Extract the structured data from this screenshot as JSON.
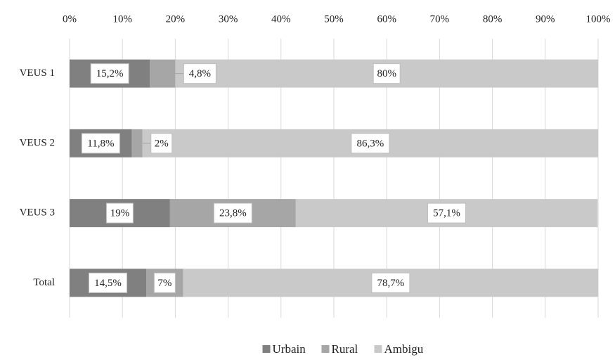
{
  "chart_data": {
    "type": "stacked_barh",
    "categories": [
      "VEUS 1",
      "VEUS 2",
      "VEUS 3",
      "Total"
    ],
    "series": [
      {
        "name": "Urbain",
        "color": "#808080",
        "values": [
          15.2,
          11.8,
          19,
          14.5
        ],
        "value_labels": [
          "15,2%",
          "11,8%",
          "19%",
          "14,5%"
        ]
      },
      {
        "name": "Rural",
        "color": "#a6a6a6",
        "values": [
          4.8,
          2,
          23.8,
          7
        ],
        "value_labels": [
          "4,8%",
          "2%",
          "23,8%",
          "7%"
        ]
      },
      {
        "name": "Ambigu",
        "color": "#c9c9c9",
        "values": [
          80,
          86.3,
          57.1,
          78.7
        ],
        "value_labels": [
          "80%",
          "86,3%",
          "57,1%",
          "78,7%"
        ]
      }
    ],
    "xlim": [
      0,
      100
    ],
    "xticks": [
      {
        "value": 0,
        "label": "0%"
      },
      {
        "value": 10,
        "label": "10%"
      },
      {
        "value": 20,
        "label": "20%"
      },
      {
        "value": 30,
        "label": "30%"
      },
      {
        "value": 40,
        "label": "40%"
      },
      {
        "value": 50,
        "label": "50%"
      },
      {
        "value": 60,
        "label": "60%"
      },
      {
        "value": 70,
        "label": "70%"
      },
      {
        "value": 80,
        "label": "80%"
      },
      {
        "value": 90,
        "label": "90%"
      },
      {
        "value": 100,
        "label": "100%"
      }
    ],
    "grid": true,
    "legend": "bottom"
  }
}
